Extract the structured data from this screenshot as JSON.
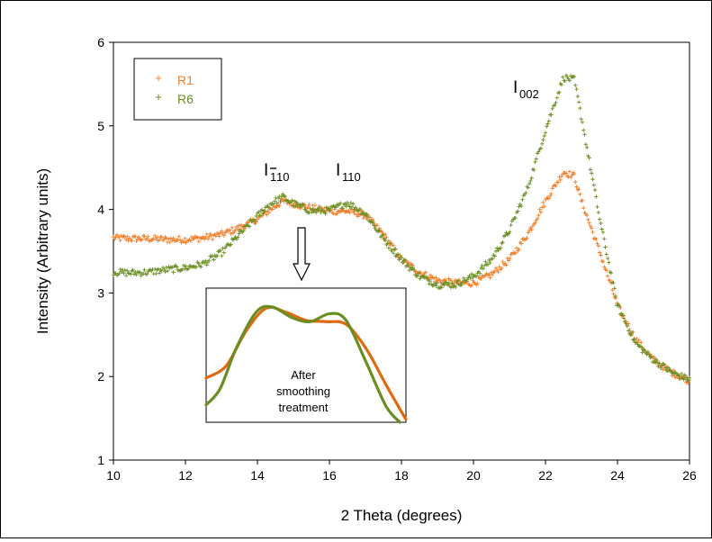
{
  "chart_data": {
    "type": "scatter",
    "xlabel": "2 Theta (degrees)",
    "ylabel": "Intensity (Arbitrary units)",
    "xlim": [
      10,
      26
    ],
    "ylim": [
      1,
      6
    ],
    "xticks": [
      "10",
      "12",
      "14",
      "16",
      "18",
      "20",
      "22",
      "24",
      "26"
    ],
    "yticks": [
      "1",
      "2",
      "3",
      "4",
      "5",
      "6"
    ],
    "grid": false,
    "legend": {
      "position": "top-left",
      "entries": [
        {
          "name": "R1",
          "color": "#f07f2a"
        },
        {
          "name": "R6",
          "color": "#6b8e23"
        }
      ]
    },
    "series": [
      {
        "name": "R1",
        "color": "#f07f2a",
        "marker": "+",
        "points": [
          [
            10.0,
            3.66
          ],
          [
            10.5,
            3.65
          ],
          [
            11.0,
            3.65
          ],
          [
            11.5,
            3.64
          ],
          [
            12.0,
            3.64
          ],
          [
            12.5,
            3.66
          ],
          [
            13.0,
            3.7
          ],
          [
            13.5,
            3.78
          ],
          [
            14.0,
            3.88
          ],
          [
            14.3,
            3.98
          ],
          [
            14.7,
            4.1
          ],
          [
            15.0,
            4.07
          ],
          [
            15.5,
            4.02
          ],
          [
            16.0,
            3.98
          ],
          [
            16.5,
            3.98
          ],
          [
            17.0,
            3.93
          ],
          [
            17.5,
            3.7
          ],
          [
            18.0,
            3.4
          ],
          [
            18.5,
            3.25
          ],
          [
            19.0,
            3.15
          ],
          [
            19.5,
            3.12
          ],
          [
            20.0,
            3.12
          ],
          [
            20.5,
            3.22
          ],
          [
            21.0,
            3.4
          ],
          [
            21.5,
            3.7
          ],
          [
            22.0,
            4.1
          ],
          [
            22.5,
            4.45
          ],
          [
            22.8,
            4.4
          ],
          [
            23.0,
            4.1
          ],
          [
            23.5,
            3.5
          ],
          [
            24.0,
            2.85
          ],
          [
            24.5,
            2.45
          ],
          [
            25.0,
            2.2
          ],
          [
            25.5,
            2.05
          ],
          [
            26.0,
            1.95
          ]
        ]
      },
      {
        "name": "R6",
        "color": "#6b8e23",
        "marker": "+",
        "points": [
          [
            10.0,
            3.25
          ],
          [
            10.5,
            3.24
          ],
          [
            11.0,
            3.25
          ],
          [
            11.5,
            3.28
          ],
          [
            12.0,
            3.3
          ],
          [
            12.5,
            3.35
          ],
          [
            13.0,
            3.48
          ],
          [
            13.5,
            3.7
          ],
          [
            14.0,
            3.92
          ],
          [
            14.3,
            4.05
          ],
          [
            14.7,
            4.15
          ],
          [
            15.0,
            4.07
          ],
          [
            15.5,
            3.98
          ],
          [
            16.0,
            3.99
          ],
          [
            16.5,
            4.08
          ],
          [
            17.0,
            3.95
          ],
          [
            17.5,
            3.65
          ],
          [
            18.0,
            3.4
          ],
          [
            18.5,
            3.2
          ],
          [
            19.0,
            3.1
          ],
          [
            19.5,
            3.1
          ],
          [
            20.0,
            3.2
          ],
          [
            20.5,
            3.4
          ],
          [
            21.0,
            3.75
          ],
          [
            21.5,
            4.25
          ],
          [
            22.0,
            4.95
          ],
          [
            22.5,
            5.58
          ],
          [
            22.8,
            5.55
          ],
          [
            23.0,
            5.1
          ],
          [
            23.5,
            3.9
          ],
          [
            24.0,
            2.85
          ],
          [
            24.5,
            2.4
          ],
          [
            25.0,
            2.2
          ],
          [
            25.5,
            2.05
          ],
          [
            26.0,
            1.96
          ]
        ]
      }
    ],
    "annotations": {
      "peak_110bar": {
        "base": "I",
        "sub": "1",
        "sub_rest": "10",
        "x": 14.7
      },
      "peak_110": {
        "base": "I",
        "sub": "110",
        "x": 16.6
      },
      "peak_002": {
        "base": "I",
        "sub": "002",
        "x": 22.3
      }
    },
    "inset": {
      "text_lines": [
        "After",
        "smoothing",
        "treatment"
      ],
      "series": [
        {
          "name": "R1",
          "color": "#e06a10",
          "curve": [
            [
              0.0,
              0.33
            ],
            [
              0.1,
              0.42
            ],
            [
              0.2,
              0.68
            ],
            [
              0.3,
              0.85
            ],
            [
              0.4,
              0.82
            ],
            [
              0.5,
              0.76
            ],
            [
              0.6,
              0.75
            ],
            [
              0.7,
              0.73
            ],
            [
              0.8,
              0.55
            ],
            [
              0.9,
              0.28
            ],
            [
              1.0,
              0.02
            ]
          ]
        },
        {
          "name": "R6",
          "color": "#6b8e23",
          "curve": [
            [
              0.0,
              0.13
            ],
            [
              0.07,
              0.25
            ],
            [
              0.15,
              0.55
            ],
            [
              0.25,
              0.82
            ],
            [
              0.33,
              0.86
            ],
            [
              0.43,
              0.78
            ],
            [
              0.52,
              0.75
            ],
            [
              0.62,
              0.81
            ],
            [
              0.7,
              0.76
            ],
            [
              0.8,
              0.45
            ],
            [
              0.9,
              0.12
            ],
            [
              0.97,
              0.0
            ]
          ]
        }
      ]
    }
  }
}
